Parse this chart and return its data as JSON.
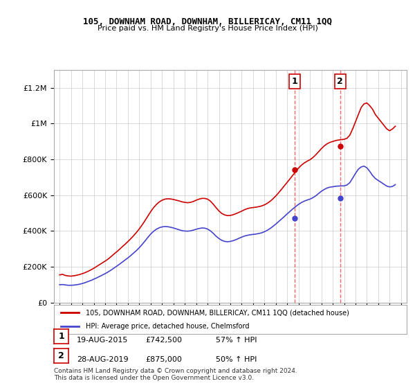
{
  "title": "105, DOWNHAM ROAD, DOWNHAM, BILLERICAY, CM11 1QQ",
  "subtitle": "Price paid vs. HM Land Registry's House Price Index (HPI)",
  "footer": "Contains HM Land Registry data © Crown copyright and database right 2024.\nThis data is licensed under the Open Government Licence v3.0.",
  "legend_line1": "105, DOWNHAM ROAD, DOWNHAM, BILLERICAY, CM11 1QQ (detached house)",
  "legend_line2": "HPI: Average price, detached house, Chelmsford",
  "transaction1_date": "19-AUG-2015",
  "transaction1_price": "£742,500",
  "transaction1_hpi": "57% ↑ HPI",
  "transaction2_date": "28-AUG-2019",
  "transaction2_price": "£875,000",
  "transaction2_hpi": "50% ↑ HPI",
  "red_color": "#cc0000",
  "blue_color": "#4444cc",
  "background_color": "#ffffff",
  "grid_color": "#cccccc",
  "vline_color": "#ff6666",
  "marker1_year": 2015.65,
  "marker2_year": 2019.65,
  "marker1_price_red": 742500,
  "marker2_price_red": 875000,
  "marker1_price_blue": 473000,
  "marker2_price_blue": 583000,
  "ylim": [
    0,
    1300000
  ],
  "xlim_start": 1994.5,
  "xlim_end": 2025.5,
  "yticks": [
    0,
    200000,
    400000,
    600000,
    800000,
    1000000,
    1200000
  ],
  "ytick_labels": [
    "£0",
    "£200K",
    "£400K",
    "£600K",
    "£800K",
    "£1M",
    "£1.2M"
  ],
  "xticks": [
    1995,
    1996,
    1997,
    1998,
    1999,
    2000,
    2001,
    2002,
    2003,
    2004,
    2005,
    2006,
    2007,
    2008,
    2009,
    2010,
    2011,
    2012,
    2013,
    2014,
    2015,
    2016,
    2017,
    2018,
    2019,
    2020,
    2021,
    2022,
    2023,
    2024,
    2025
  ],
  "red_data_x": [
    1995.0,
    1995.25,
    1995.5,
    1995.75,
    1996.0,
    1996.25,
    1996.5,
    1996.75,
    1997.0,
    1997.25,
    1997.5,
    1997.75,
    1998.0,
    1998.25,
    1998.5,
    1998.75,
    1999.0,
    1999.25,
    1999.5,
    1999.75,
    2000.0,
    2000.25,
    2000.5,
    2000.75,
    2001.0,
    2001.25,
    2001.5,
    2001.75,
    2002.0,
    2002.25,
    2002.5,
    2002.75,
    2003.0,
    2003.25,
    2003.5,
    2003.75,
    2004.0,
    2004.25,
    2004.5,
    2004.75,
    2005.0,
    2005.25,
    2005.5,
    2005.75,
    2006.0,
    2006.25,
    2006.5,
    2006.75,
    2007.0,
    2007.25,
    2007.5,
    2007.75,
    2008.0,
    2008.25,
    2008.5,
    2008.75,
    2009.0,
    2009.25,
    2009.5,
    2009.75,
    2010.0,
    2010.25,
    2010.5,
    2010.75,
    2011.0,
    2011.25,
    2011.5,
    2011.75,
    2012.0,
    2012.25,
    2012.5,
    2012.75,
    2013.0,
    2013.25,
    2013.5,
    2013.75,
    2014.0,
    2014.25,
    2014.5,
    2014.75,
    2015.0,
    2015.25,
    2015.5,
    2015.75,
    2016.0,
    2016.25,
    2016.5,
    2016.75,
    2017.0,
    2017.25,
    2017.5,
    2017.75,
    2018.0,
    2018.25,
    2018.5,
    2018.75,
    2019.0,
    2019.25,
    2019.5,
    2019.75,
    2020.0,
    2020.25,
    2020.5,
    2020.75,
    2021.0,
    2021.25,
    2021.5,
    2021.75,
    2022.0,
    2022.25,
    2022.5,
    2022.75,
    2023.0,
    2023.25,
    2023.5,
    2023.75,
    2024.0,
    2024.25,
    2024.5
  ],
  "red_data_y": [
    155000,
    158000,
    152000,
    149000,
    148000,
    150000,
    153000,
    157000,
    162000,
    168000,
    175000,
    183000,
    192000,
    202000,
    212000,
    222000,
    232000,
    243000,
    256000,
    270000,
    283000,
    297000,
    312000,
    326000,
    341000,
    357000,
    374000,
    392000,
    412000,
    434000,
    458000,
    483000,
    508000,
    530000,
    548000,
    562000,
    572000,
    578000,
    580000,
    579000,
    576000,
    572000,
    568000,
    563000,
    560000,
    558000,
    560000,
    565000,
    572000,
    578000,
    582000,
    582000,
    578000,
    567000,
    550000,
    530000,
    512000,
    498000,
    490000,
    486000,
    487000,
    491000,
    497000,
    504000,
    511000,
    519000,
    525000,
    529000,
    531000,
    533000,
    536000,
    540000,
    546000,
    555000,
    566000,
    580000,
    596000,
    614000,
    633000,
    653000,
    672000,
    692000,
    712000,
    732000,
    752000,
    768000,
    780000,
    790000,
    798000,
    810000,
    825000,
    842000,
    860000,
    875000,
    887000,
    895000,
    900000,
    905000,
    908000,
    910000,
    912000,
    918000,
    935000,
    970000,
    1010000,
    1050000,
    1090000,
    1110000,
    1115000,
    1100000,
    1080000,
    1050000,
    1030000,
    1010000,
    990000,
    970000,
    960000,
    970000,
    985000
  ],
  "blue_data_x": [
    1995.0,
    1995.25,
    1995.5,
    1995.75,
    1996.0,
    1996.25,
    1996.5,
    1996.75,
    1997.0,
    1997.25,
    1997.5,
    1997.75,
    1998.0,
    1998.25,
    1998.5,
    1998.75,
    1999.0,
    1999.25,
    1999.5,
    1999.75,
    2000.0,
    2000.25,
    2000.5,
    2000.75,
    2001.0,
    2001.25,
    2001.5,
    2001.75,
    2002.0,
    2002.25,
    2002.5,
    2002.75,
    2003.0,
    2003.25,
    2003.5,
    2003.75,
    2004.0,
    2004.25,
    2004.5,
    2004.75,
    2005.0,
    2005.25,
    2005.5,
    2005.75,
    2006.0,
    2006.25,
    2006.5,
    2006.75,
    2007.0,
    2007.25,
    2007.5,
    2007.75,
    2008.0,
    2008.25,
    2008.5,
    2008.75,
    2009.0,
    2009.25,
    2009.5,
    2009.75,
    2010.0,
    2010.25,
    2010.5,
    2010.75,
    2011.0,
    2011.25,
    2011.5,
    2011.75,
    2012.0,
    2012.25,
    2012.5,
    2012.75,
    2013.0,
    2013.25,
    2013.5,
    2013.75,
    2014.0,
    2014.25,
    2014.5,
    2014.75,
    2015.0,
    2015.25,
    2015.5,
    2015.75,
    2016.0,
    2016.25,
    2016.5,
    2016.75,
    2017.0,
    2017.25,
    2017.5,
    2017.75,
    2018.0,
    2018.25,
    2018.5,
    2018.75,
    2019.0,
    2019.25,
    2019.5,
    2019.75,
    2020.0,
    2020.25,
    2020.5,
    2020.75,
    2021.0,
    2021.25,
    2021.5,
    2021.75,
    2022.0,
    2022.25,
    2022.5,
    2022.75,
    2023.0,
    2023.25,
    2023.5,
    2023.75,
    2024.0,
    2024.25,
    2024.5
  ],
  "blue_data_y": [
    100000,
    101000,
    99000,
    97000,
    97000,
    98000,
    100000,
    103000,
    107000,
    112000,
    118000,
    124000,
    131000,
    138000,
    146000,
    154000,
    162000,
    171000,
    181000,
    192000,
    203000,
    214000,
    226000,
    238000,
    250000,
    263000,
    277000,
    291000,
    307000,
    325000,
    344000,
    364000,
    383000,
    398000,
    410000,
    418000,
    423000,
    425000,
    424000,
    421000,
    417000,
    412000,
    407000,
    402000,
    400000,
    399000,
    401000,
    405000,
    410000,
    414000,
    417000,
    416000,
    411000,
    401000,
    387000,
    371000,
    358000,
    348000,
    342000,
    340000,
    342000,
    346000,
    352000,
    359000,
    366000,
    372000,
    376000,
    379000,
    381000,
    383000,
    386000,
    390000,
    396000,
    404000,
    414000,
    426000,
    439000,
    453000,
    467000,
    481000,
    496000,
    510000,
    524000,
    537000,
    549000,
    559000,
    567000,
    573000,
    578000,
    586000,
    596000,
    609000,
    622000,
    632000,
    640000,
    645000,
    647000,
    650000,
    651000,
    652000,
    652000,
    657000,
    670000,
    695000,
    722000,
    745000,
    758000,
    762000,
    753000,
    733000,
    710000,
    693000,
    682000,
    672000,
    661000,
    651000,
    646000,
    649000,
    659000
  ]
}
